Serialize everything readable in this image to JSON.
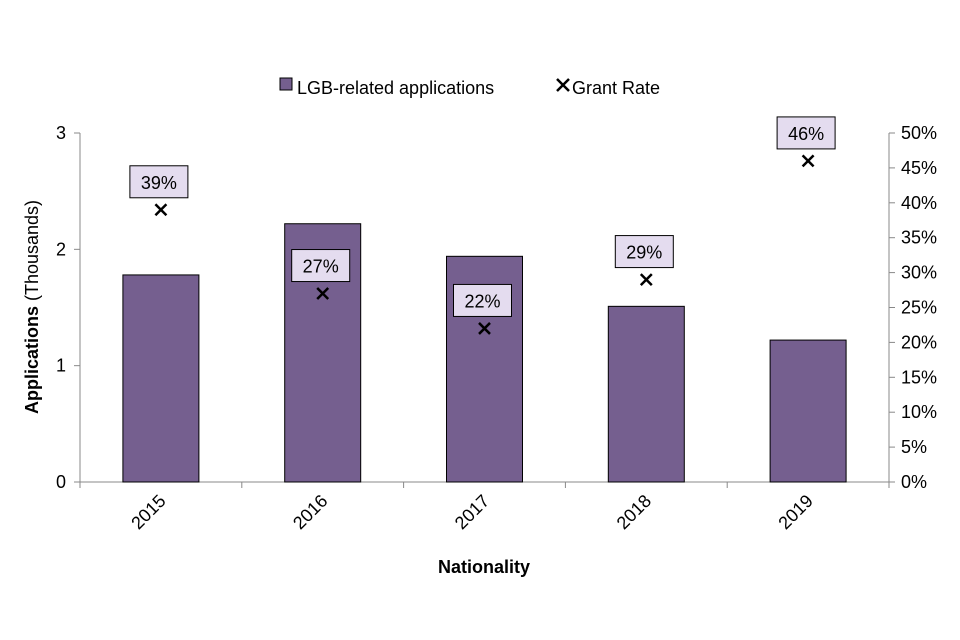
{
  "chart_data": {
    "type": "bar",
    "categories": [
      "2015",
      "2016",
      "2017",
      "2018",
      "2019"
    ],
    "series": [
      {
        "name": "LGB-related applications",
        "type": "bar",
        "axis": "left",
        "values": [
          1.78,
          2.22,
          1.94,
          1.51,
          1.22
        ]
      },
      {
        "name": "Grant Rate",
        "type": "scatter",
        "axis": "right",
        "values": [
          39,
          27,
          22,
          29,
          46
        ],
        "data_labels": [
          "39%",
          "27%",
          "22%",
          "29%",
          "46%"
        ]
      }
    ],
    "xlabel": "Nationality",
    "ylabel": {
      "bold": "Applications",
      "light": "(Thousands)"
    },
    "ylim": [
      0,
      3
    ],
    "yticks": [
      "0",
      "1",
      "2",
      "3"
    ],
    "y2lim": [
      0,
      50
    ],
    "y2ticks": [
      "0%",
      "5%",
      "10%",
      "15%",
      "20%",
      "25%",
      "30%",
      "35%",
      "40%",
      "45%",
      "50%"
    ],
    "legend": {
      "placement": "top-center"
    },
    "grid": false,
    "colors": {
      "bar_fill": "#755f8f",
      "bar_stroke": "#000000",
      "marker": "#000000",
      "label_fill": "#e4dcef",
      "label_stroke": "#000000",
      "axis": "#888888"
    }
  }
}
